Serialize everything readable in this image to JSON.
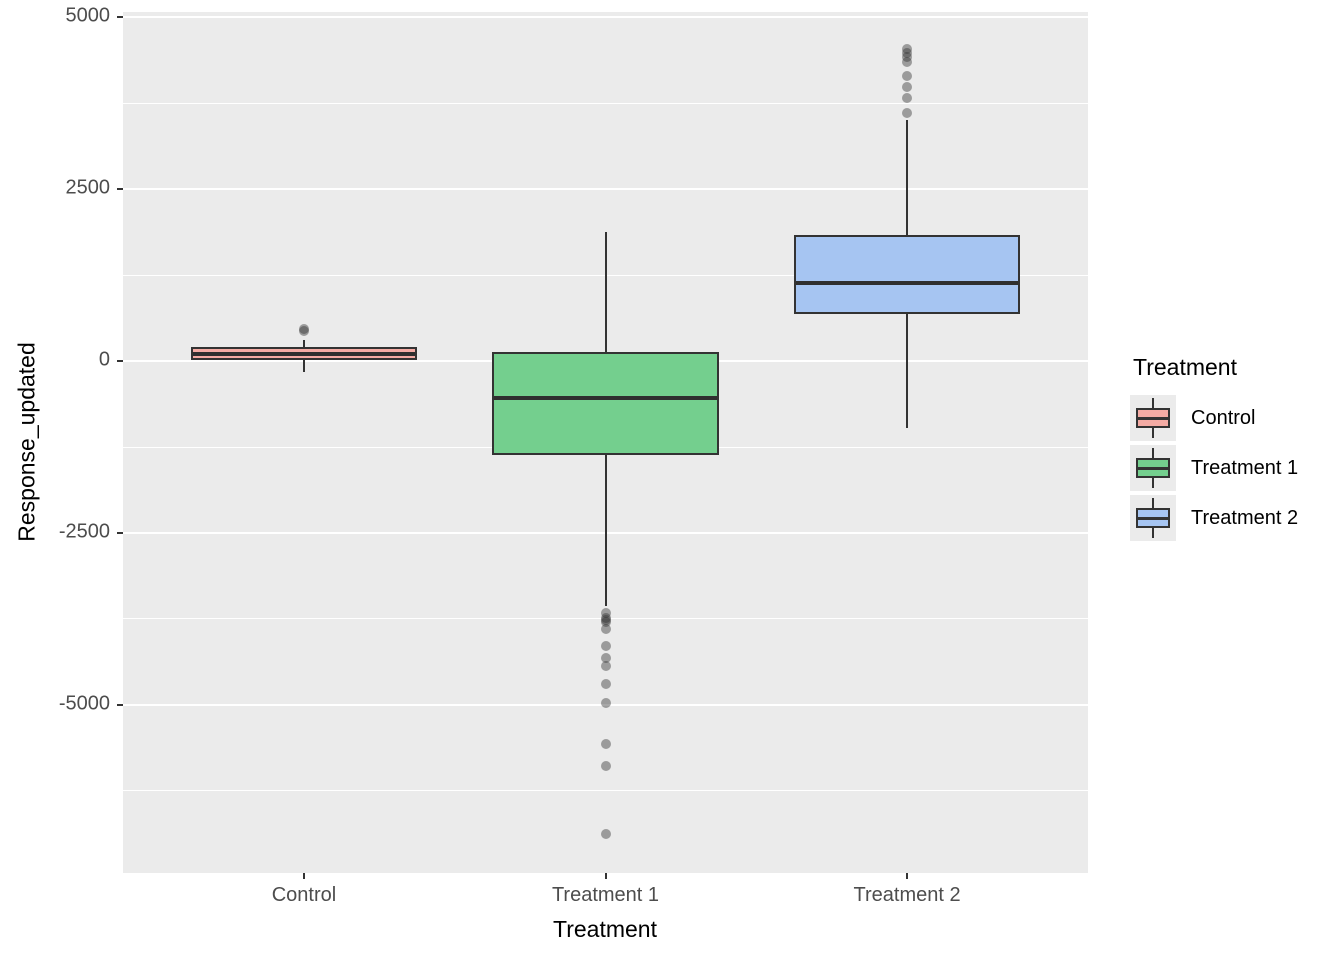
{
  "figure": {
    "background": "#ffffff",
    "panel_bg": "#ebebeb",
    "grid_color": "#ffffff",
    "tick_color": "#333333",
    "tick_label_color": "#4d4d4d",
    "outlier_color": "rgba(45,45,45,0.42)",
    "box_border_color": "#333333"
  },
  "chart_data": {
    "type": "boxplot",
    "title": "",
    "xlabel": "Treatment",
    "ylabel": "Response_updated",
    "categories": [
      "Control",
      "Treatment 1",
      "Treatment 2"
    ],
    "y_major_ticks": [
      5000,
      2500,
      0,
      -2500,
      -5000
    ],
    "y_minor_ticks": [
      3750,
      1250,
      -1250,
      -3750,
      -6250
    ],
    "ylim": [
      -7442,
      5073
    ],
    "grid": true,
    "legend": {
      "title": "Treatment",
      "position": "right",
      "entries": [
        {
          "label": "Control",
          "fill": "#f4aba4"
        },
        {
          "label": "Treatment 1",
          "fill": "#74cf8e"
        },
        {
          "label": "Treatment 2",
          "fill": "#a6c5f2"
        }
      ]
    },
    "series": [
      {
        "name": "Control",
        "fill": "#f4aba4",
        "q1": 20,
        "median": 105,
        "q3": 200,
        "whisker_low": -160,
        "whisker_high": 305,
        "outliers": [
          465,
          435
        ]
      },
      {
        "name": "Treatment 1",
        "fill": "#74cf8e",
        "q1": -1370,
        "median": -540,
        "q3": 130,
        "whisker_low": -3560,
        "whisker_high": 1870,
        "outliers": [
          -3670,
          -3740,
          -3770,
          -3800,
          -3890,
          -4140,
          -4320,
          -4430,
          -4700,
          -4970,
          -5570,
          -5880,
          -6880
        ]
      },
      {
        "name": "Treatment 2",
        "fill": "#a6c5f2",
        "q1": 690,
        "median": 1140,
        "q3": 1830,
        "whisker_low": -980,
        "whisker_high": 3510,
        "outliers": [
          4540,
          4480,
          4420,
          4350,
          4140,
          3990,
          3830,
          3600
        ]
      }
    ]
  }
}
